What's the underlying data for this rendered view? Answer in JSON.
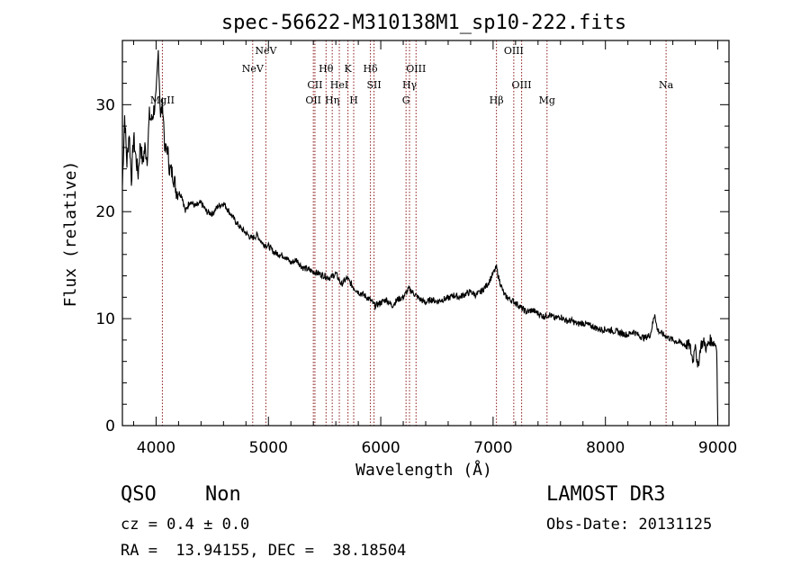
{
  "chart_data": {
    "type": "line",
    "title": "spec-56622-M310138M1_sp10-222.fits",
    "xlabel": "Wavelength (Å)",
    "ylabel": "Flux (relative)",
    "xlim": [
      3700,
      9100
    ],
    "ylim": [
      0,
      36
    ],
    "xticks": [
      4000,
      5000,
      6000,
      7000,
      8000,
      9000
    ],
    "yticks": [
      0,
      10,
      20,
      30
    ],
    "grid": false,
    "series": [
      {
        "x": [
          3700,
          3720,
          3740,
          3760,
          3780,
          3800,
          3820,
          3840,
          3860,
          3880,
          3900,
          3920,
          3940,
          3960,
          3980,
          4000,
          4020,
          4040,
          4060,
          4080,
          4100,
          4120,
          4150,
          4180,
          4200,
          4230,
          4260,
          4300,
          4350,
          4400,
          4450,
          4500,
          4550,
          4600,
          4650,
          4700,
          4750,
          4800,
          4850,
          4900,
          4950,
          5000,
          5050,
          5100,
          5150,
          5200,
          5250,
          5300,
          5350,
          5400,
          5450,
          5500,
          5550,
          5600,
          5650,
          5700,
          5750,
          5800,
          5850,
          5900,
          5950,
          6000,
          6050,
          6100,
          6150,
          6200,
          6250,
          6300,
          6350,
          6400,
          6450,
          6500,
          6550,
          6600,
          6650,
          6700,
          6750,
          6800,
          6850,
          6900,
          6950,
          7000,
          7030,
          7050,
          7080,
          7100,
          7150,
          7200,
          7250,
          7300,
          7350,
          7400,
          7450,
          7500,
          7550,
          7600,
          7650,
          7700,
          7750,
          7800,
          7850,
          7900,
          7950,
          8000,
          8050,
          8100,
          8150,
          8200,
          8250,
          8300,
          8350,
          8400,
          8440,
          8460,
          8500,
          8550,
          8600,
          8650,
          8700,
          8750,
          8780,
          8800,
          8820,
          8850,
          8880,
          8900,
          8930,
          8960,
          8990,
          9000
        ],
        "y": [
          22.5,
          29.0,
          24.5,
          27.5,
          23.0,
          27.0,
          25.0,
          23.5,
          26.5,
          24.5,
          26.0,
          25.0,
          29.0,
          28.5,
          29.5,
          30.5,
          35.0,
          29.0,
          30.0,
          25.5,
          26.0,
          24.0,
          23.5,
          22.0,
          21.8,
          21.5,
          20.0,
          21.0,
          20.5,
          20.8,
          20.0,
          19.8,
          20.5,
          20.8,
          20.0,
          19.2,
          18.5,
          18.0,
          17.5,
          17.8,
          17.0,
          16.8,
          16.2,
          16.0,
          15.8,
          15.2,
          15.5,
          14.8,
          14.6,
          14.4,
          14.2,
          14.0,
          13.8,
          14.2,
          13.2,
          13.8,
          13.0,
          12.5,
          12.2,
          11.8,
          11.2,
          11.5,
          11.8,
          11.2,
          11.8,
          12.0,
          12.8,
          12.3,
          11.8,
          11.5,
          11.8,
          11.6,
          11.8,
          11.9,
          12.2,
          12.0,
          12.3,
          12.5,
          12.2,
          12.6,
          13.2,
          14.2,
          14.8,
          13.8,
          12.8,
          12.2,
          11.8,
          11.5,
          11.0,
          10.6,
          10.8,
          10.5,
          10.2,
          10.4,
          10.0,
          10.2,
          9.8,
          9.8,
          9.5,
          9.6,
          9.4,
          9.2,
          9.0,
          9.0,
          8.9,
          8.8,
          8.6,
          8.5,
          8.8,
          8.4,
          8.2,
          8.5,
          10.5,
          9.0,
          8.6,
          8.3,
          8.0,
          7.8,
          7.6,
          7.5,
          6.0,
          8.0,
          5.2,
          7.6,
          7.8,
          7.2,
          8.0,
          7.8,
          7.5,
          0.5
        ]
      }
    ],
    "lines": [
      {
        "label": "MgII",
        "x": 4056
      },
      {
        "label": "NeV",
        "x": 4860
      },
      {
        "label": "NeV",
        "x": 4977
      },
      {
        "label": "OII",
        "x": 5400
      },
      {
        "label": "CII",
        "x": 5414
      },
      {
        "label": "Hθ",
        "x": 5513
      },
      {
        "label": "Hη",
        "x": 5568
      },
      {
        "label": "HeI",
        "x": 5631
      },
      {
        "label": "K",
        "x": 5708
      },
      {
        "label": "H",
        "x": 5759
      },
      {
        "label": "Hδ",
        "x": 5908
      },
      {
        "label": "SII",
        "x": 5940
      },
      {
        "label": "G",
        "x": 6225
      },
      {
        "label": "Hγ",
        "x": 6256
      },
      {
        "label": "OIII",
        "x": 6314
      },
      {
        "label": "Hβ",
        "x": 7030
      },
      {
        "label": "OIII",
        "x": 7184
      },
      {
        "label": "OIII",
        "x": 7254
      },
      {
        "label": "Mg",
        "x": 7480
      },
      {
        "label": "Na",
        "x": 8540
      }
    ]
  },
  "footer": {
    "class_label": "QSO",
    "subclass_label": "Non",
    "cz": "cz = 0.4 ± 0.0",
    "coords": "RA =  13.94155, DEC =  38.18504",
    "survey": "LAMOST DR3",
    "obs_date": "Obs-Date: 20131125"
  },
  "colors": {
    "spectrum": "#000000",
    "line_markers": "#8b1a1a",
    "axes": "#000000"
  }
}
